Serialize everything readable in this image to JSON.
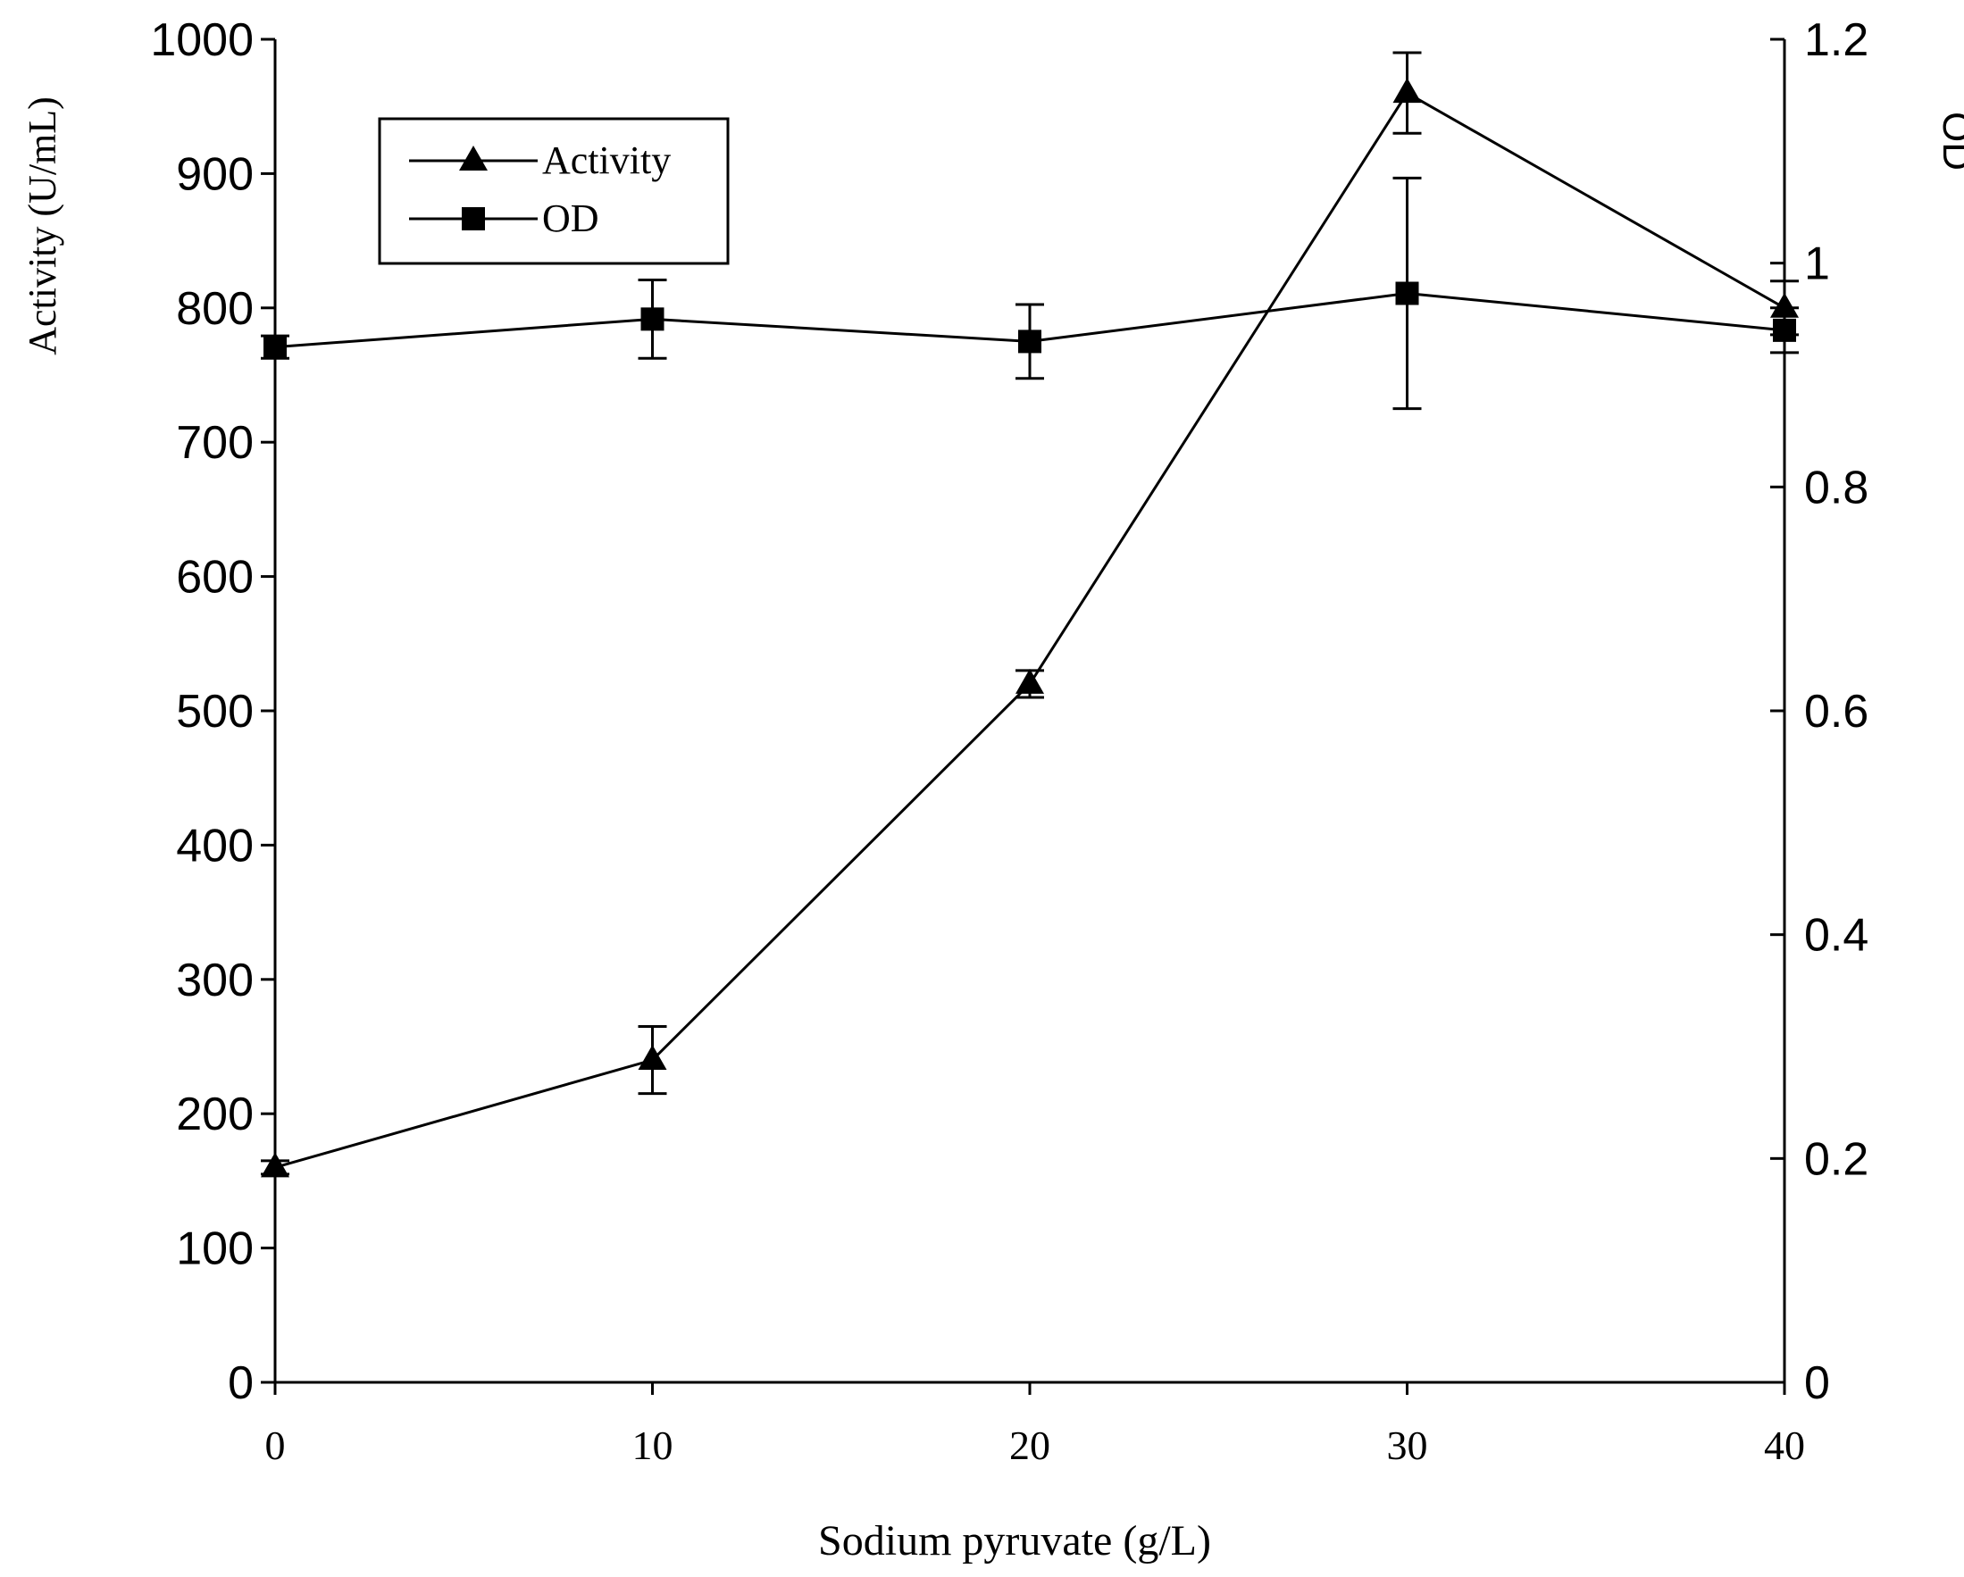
{
  "chart_data": {
    "type": "line",
    "title": "",
    "xlabel": "Sodium pyruvate (g/L)",
    "ylabel_left": "Activity (U/mL)",
    "ylabel_right": "OD",
    "x": [
      0,
      10,
      20,
      30,
      40
    ],
    "x_ticks": [
      "0",
      "10",
      "20",
      "30",
      "40"
    ],
    "xlim": [
      0,
      40
    ],
    "ylim_left": [
      0,
      1000
    ],
    "ylim_right": [
      0,
      1.2
    ],
    "y_left_ticks": [
      "0",
      "100",
      "200",
      "300",
      "400",
      "500",
      "600",
      "700",
      "800",
      "900",
      "1000"
    ],
    "y_right_ticks": [
      "0",
      "0.2",
      "0.4",
      "0.6",
      "0.8",
      "1",
      "1.2"
    ],
    "grid": false,
    "legend_position": "top-left",
    "series": [
      {
        "name": "Activity",
        "axis": "left",
        "marker": "triangle",
        "values": [
          160,
          240,
          520,
          960,
          800
        ],
        "error": [
          5,
          25,
          10,
          30,
          20
        ]
      },
      {
        "name": "OD",
        "axis": "right",
        "marker": "square",
        "values": [
          0.925,
          0.95,
          0.93,
          0.973,
          0.94
        ],
        "error": [
          0.01,
          0.035,
          0.033,
          0.103,
          0.02
        ]
      }
    ]
  }
}
